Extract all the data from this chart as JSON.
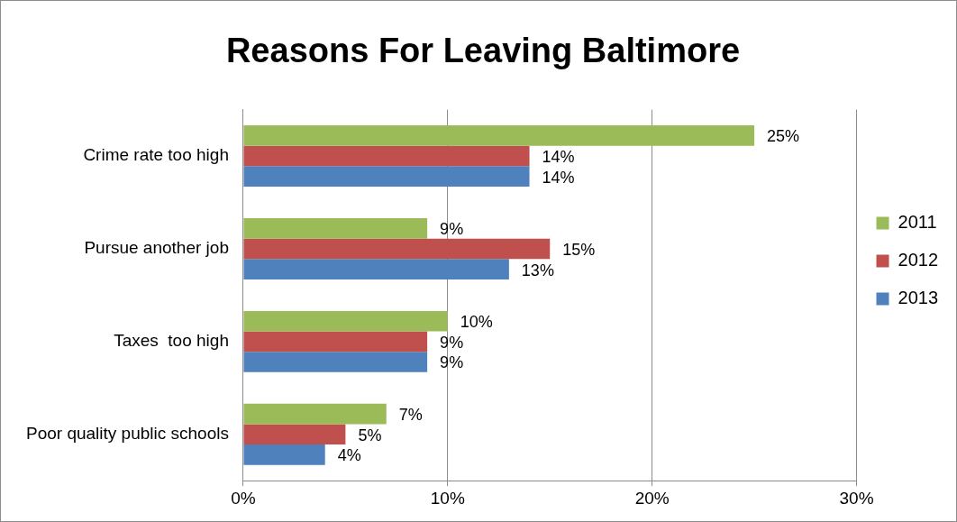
{
  "chart_data": {
    "type": "bar",
    "orientation": "horizontal",
    "title": "Reasons For Leaving Baltimore",
    "categories": [
      "Crime rate too high",
      "Pursue another job",
      "Taxes  too high",
      "Poor quality public schools"
    ],
    "series": [
      {
        "name": "2011",
        "color": "#9bbb59",
        "values": [
          25,
          9,
          10,
          7
        ],
        "value_labels": [
          "25%",
          "9%",
          "10%",
          "7%"
        ]
      },
      {
        "name": "2012",
        "color": "#c0504d",
        "values": [
          14,
          15,
          9,
          5
        ],
        "value_labels": [
          "14%",
          "15%",
          "9%",
          "5%"
        ]
      },
      {
        "name": "2013",
        "color": "#4f81bd",
        "values": [
          14,
          13,
          9,
          4
        ],
        "value_labels": [
          "14%",
          "13%",
          "9%",
          "4%"
        ]
      }
    ],
    "xlim": [
      0,
      30
    ],
    "xticks": [
      {
        "value": 0,
        "label": "0%"
      },
      {
        "value": 10,
        "label": "10%"
      },
      {
        "value": 20,
        "label": "20%"
      },
      {
        "value": 30,
        "label": "30%"
      }
    ],
    "grid": "x",
    "legend": "right"
  }
}
